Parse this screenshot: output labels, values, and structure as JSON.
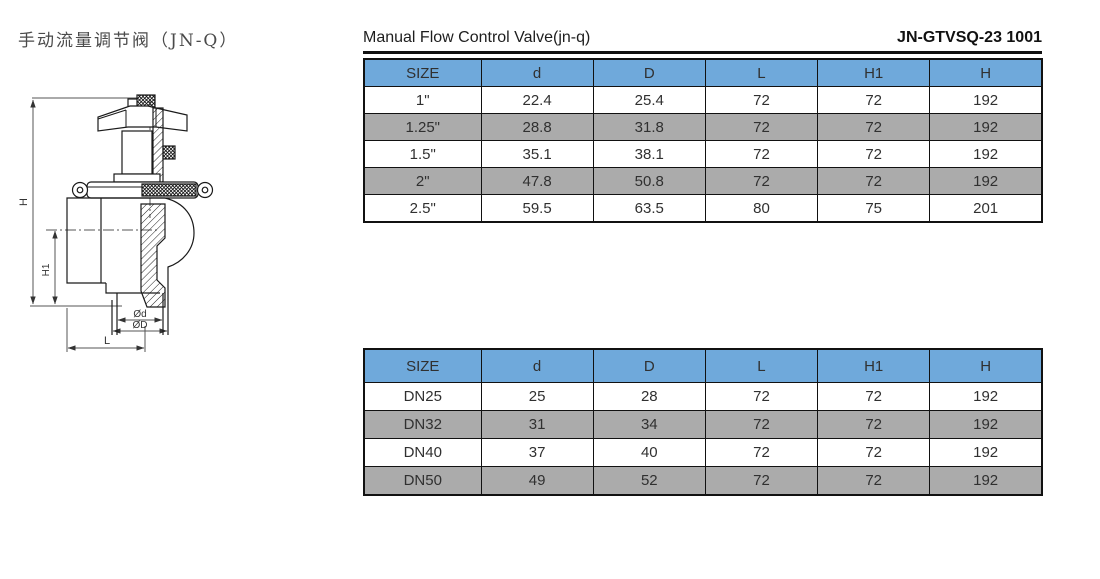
{
  "document": {
    "title_cn": "手动流量调节阀（JN-Q）",
    "title_en": "Manual Flow Control Valve(jn-q)",
    "code": "JN-GTVSQ-23 1001"
  },
  "colors": {
    "header_blue": "#6FA9DB",
    "row_gray": "#ABABAB",
    "line": "#111111"
  },
  "drawing": {
    "description": "valve-cross-section-line-drawing",
    "dim_labels": {
      "H": "H",
      "H1": "H1",
      "L": "L",
      "d": "Ød",
      "D": "ØD"
    }
  },
  "tables": [
    {
      "name": "inch-sizes",
      "columns": [
        "SIZE",
        "d",
        "D",
        "L",
        "H1",
        "H"
      ],
      "rows": [
        {
          "cells": [
            "1\"",
            "22.4",
            "25.4",
            "72",
            "72",
            "192"
          ],
          "shade": false
        },
        {
          "cells": [
            "1.25\"",
            "28.8",
            "31.8",
            "72",
            "72",
            "192"
          ],
          "shade": true
        },
        {
          "cells": [
            "1.5\"",
            "35.1",
            "38.1",
            "72",
            "72",
            "192"
          ],
          "shade": false
        },
        {
          "cells": [
            "2\"",
            "47.8",
            "50.8",
            "72",
            "72",
            "192"
          ],
          "shade": true
        },
        {
          "cells": [
            "2.5\"",
            "59.5",
            "63.5",
            "80",
            "75",
            "201"
          ],
          "shade": false
        }
      ]
    },
    {
      "name": "dn-sizes",
      "columns": [
        "SIZE",
        "d",
        "D",
        "L",
        "H1",
        "H"
      ],
      "rows": [
        {
          "cells": [
            "DN25",
            "25",
            "28",
            "72",
            "72",
            "192"
          ],
          "shade": false
        },
        {
          "cells": [
            "DN32",
            "31",
            "34",
            "72",
            "72",
            "192"
          ],
          "shade": true
        },
        {
          "cells": [
            "DN40",
            "37",
            "40",
            "72",
            "72",
            "192"
          ],
          "shade": false
        },
        {
          "cells": [
            "DN50",
            "49",
            "52",
            "72",
            "72",
            "192"
          ],
          "shade": true
        }
      ]
    }
  ]
}
